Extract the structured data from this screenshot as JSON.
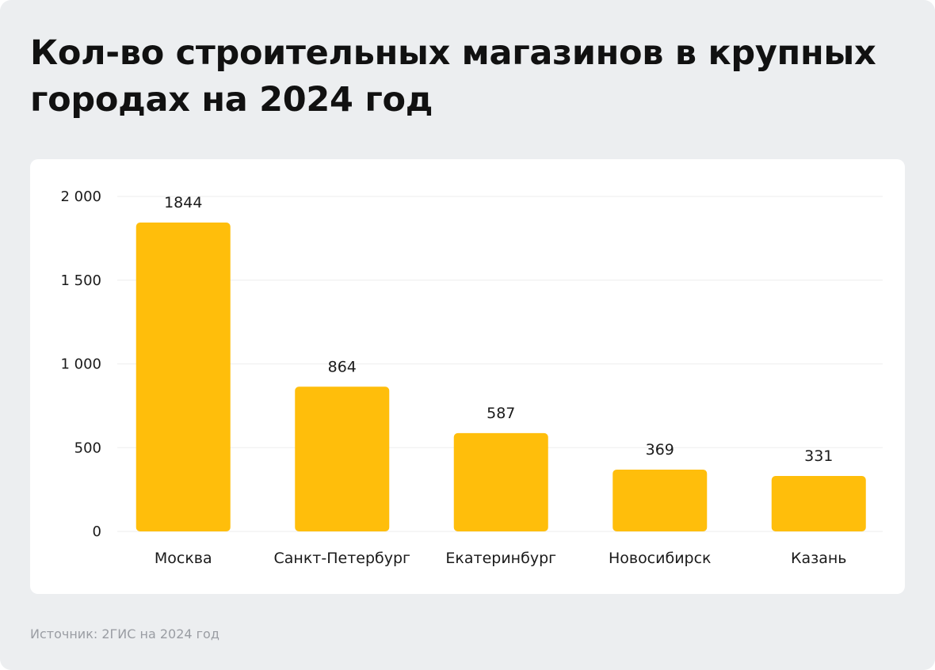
{
  "page": {
    "title": "Кол-во строительных магазинов в крупных городах на 2024 год",
    "source": "Источник: 2ГИС на 2024 год"
  },
  "colors": {
    "bar": "#ffbe0b",
    "grid": "#eeeeee",
    "background": "#eceef0",
    "card": "#ffffff"
  },
  "chart_data": {
    "type": "bar",
    "title": "Кол-во строительных магазинов в крупных городах на 2024 год",
    "categories": [
      "Москва",
      "Санкт-Петербург",
      "Екатеринбург",
      "Новосибирск",
      "Казань"
    ],
    "values": [
      1844,
      864,
      587,
      369,
      331
    ],
    "value_labels": [
      "1844",
      "864",
      "587",
      "369",
      "331"
    ],
    "xlabel": "",
    "ylabel": "",
    "ylim": [
      0,
      2000
    ],
    "yticks": [
      0,
      500,
      1000,
      1500,
      2000
    ],
    "ytick_labels": [
      "0",
      "500",
      "1 000",
      "1 500",
      "2 000"
    ],
    "grid": true,
    "legend": false
  }
}
